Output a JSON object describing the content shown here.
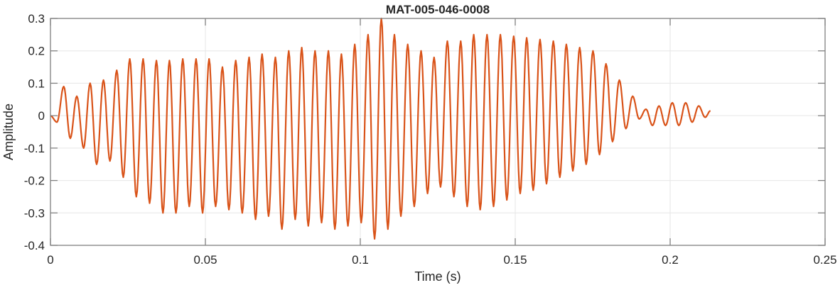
{
  "chart_data": {
    "type": "line",
    "title": "MAT-005-046-0008",
    "xlabel": "Time (s)",
    "ylabel": "Amplitude",
    "xlim": [
      0,
      0.25
    ],
    "ylim": [
      -0.4,
      0.3
    ],
    "xticks": [
      0,
      0.05,
      0.1,
      0.15,
      0.2,
      0.25
    ],
    "xtick_labels": [
      "0",
      "0.05",
      "0.1",
      "0.15",
      "0.2",
      "0.25"
    ],
    "yticks": [
      -0.4,
      -0.3,
      -0.2,
      -0.1,
      0,
      0.1,
      0.2,
      0.3
    ],
    "ytick_labels": [
      "-0.4",
      "-0.3",
      "-0.2",
      "-0.1",
      "0",
      "0.1",
      "0.2",
      "0.3"
    ],
    "grid": true,
    "line_color": "#D95319",
    "series": [
      {
        "x": [
          0,
          0.0021,
          0.0043,
          0.0064,
          0.0085,
          0.0107,
          0.0128,
          0.0149,
          0.0171,
          0.0192,
          0.0214,
          0.0235,
          0.0256,
          0.0277,
          0.0299,
          0.032,
          0.0342,
          0.0363,
          0.0384,
          0.0405,
          0.0427,
          0.0448,
          0.047,
          0.0491,
          0.0512,
          0.0533,
          0.0555,
          0.0576,
          0.0598,
          0.0619,
          0.0641,
          0.0662,
          0.0683,
          0.0704,
          0.0726,
          0.0747,
          0.0769,
          0.079,
          0.0811,
          0.0832,
          0.0854,
          0.0875,
          0.0897,
          0.0918,
          0.0939,
          0.096,
          0.0982,
          0.1003,
          0.1025,
          0.1046,
          0.1068,
          0.1089,
          0.111,
          0.1131,
          0.1153,
          0.1174,
          0.1196,
          0.1217,
          0.1238,
          0.1259,
          0.1281,
          0.1302,
          0.1324,
          0.1345,
          0.1366,
          0.1387,
          0.1409,
          0.143,
          0.1452,
          0.1473,
          0.1495,
          0.1516,
          0.1537,
          0.1558,
          0.158,
          0.1601,
          0.1623,
          0.1644,
          0.1665,
          0.1686,
          0.1708,
          0.1729,
          0.1751,
          0.1772,
          0.1793,
          0.1814,
          0.1836,
          0.1857,
          0.1879,
          0.19,
          0.1922,
          0.1943,
          0.1964,
          0.1985,
          0.2007,
          0.2028,
          0.205,
          0.2071,
          0.2092,
          0.2113,
          0.213
        ],
        "y": [
          0,
          -0.02,
          0.09,
          -0.07,
          0.06,
          -0.1,
          0.1,
          -0.15,
          0.11,
          -0.14,
          0.14,
          -0.19,
          0.175,
          -0.25,
          0.175,
          -0.27,
          0.17,
          -0.3,
          0.17,
          -0.3,
          0.175,
          -0.28,
          0.175,
          -0.3,
          0.175,
          -0.28,
          0.15,
          -0.29,
          0.17,
          -0.3,
          0.18,
          -0.32,
          0.19,
          -0.31,
          0.18,
          -0.35,
          0.2,
          -0.32,
          0.21,
          -0.34,
          0.2,
          -0.33,
          0.2,
          -0.35,
          0.19,
          -0.34,
          0.22,
          -0.33,
          0.25,
          -0.38,
          0.3,
          -0.35,
          0.25,
          -0.31,
          0.22,
          -0.28,
          0.2,
          -0.24,
          0.18,
          -0.22,
          0.23,
          -0.25,
          0.23,
          -0.28,
          0.25,
          -0.29,
          0.25,
          -0.28,
          0.25,
          -0.26,
          0.245,
          -0.24,
          0.24,
          -0.23,
          0.235,
          -0.21,
          0.23,
          -0.19,
          0.22,
          -0.17,
          0.21,
          -0.15,
          0.2,
          -0.12,
          0.16,
          -0.08,
          0.11,
          -0.04,
          0.06,
          -0.01,
          0.02,
          -0.03,
          0.03,
          -0.03,
          0.04,
          -0.03,
          0.04,
          -0.02,
          0.03,
          -0.005,
          0.015
        ]
      }
    ]
  }
}
